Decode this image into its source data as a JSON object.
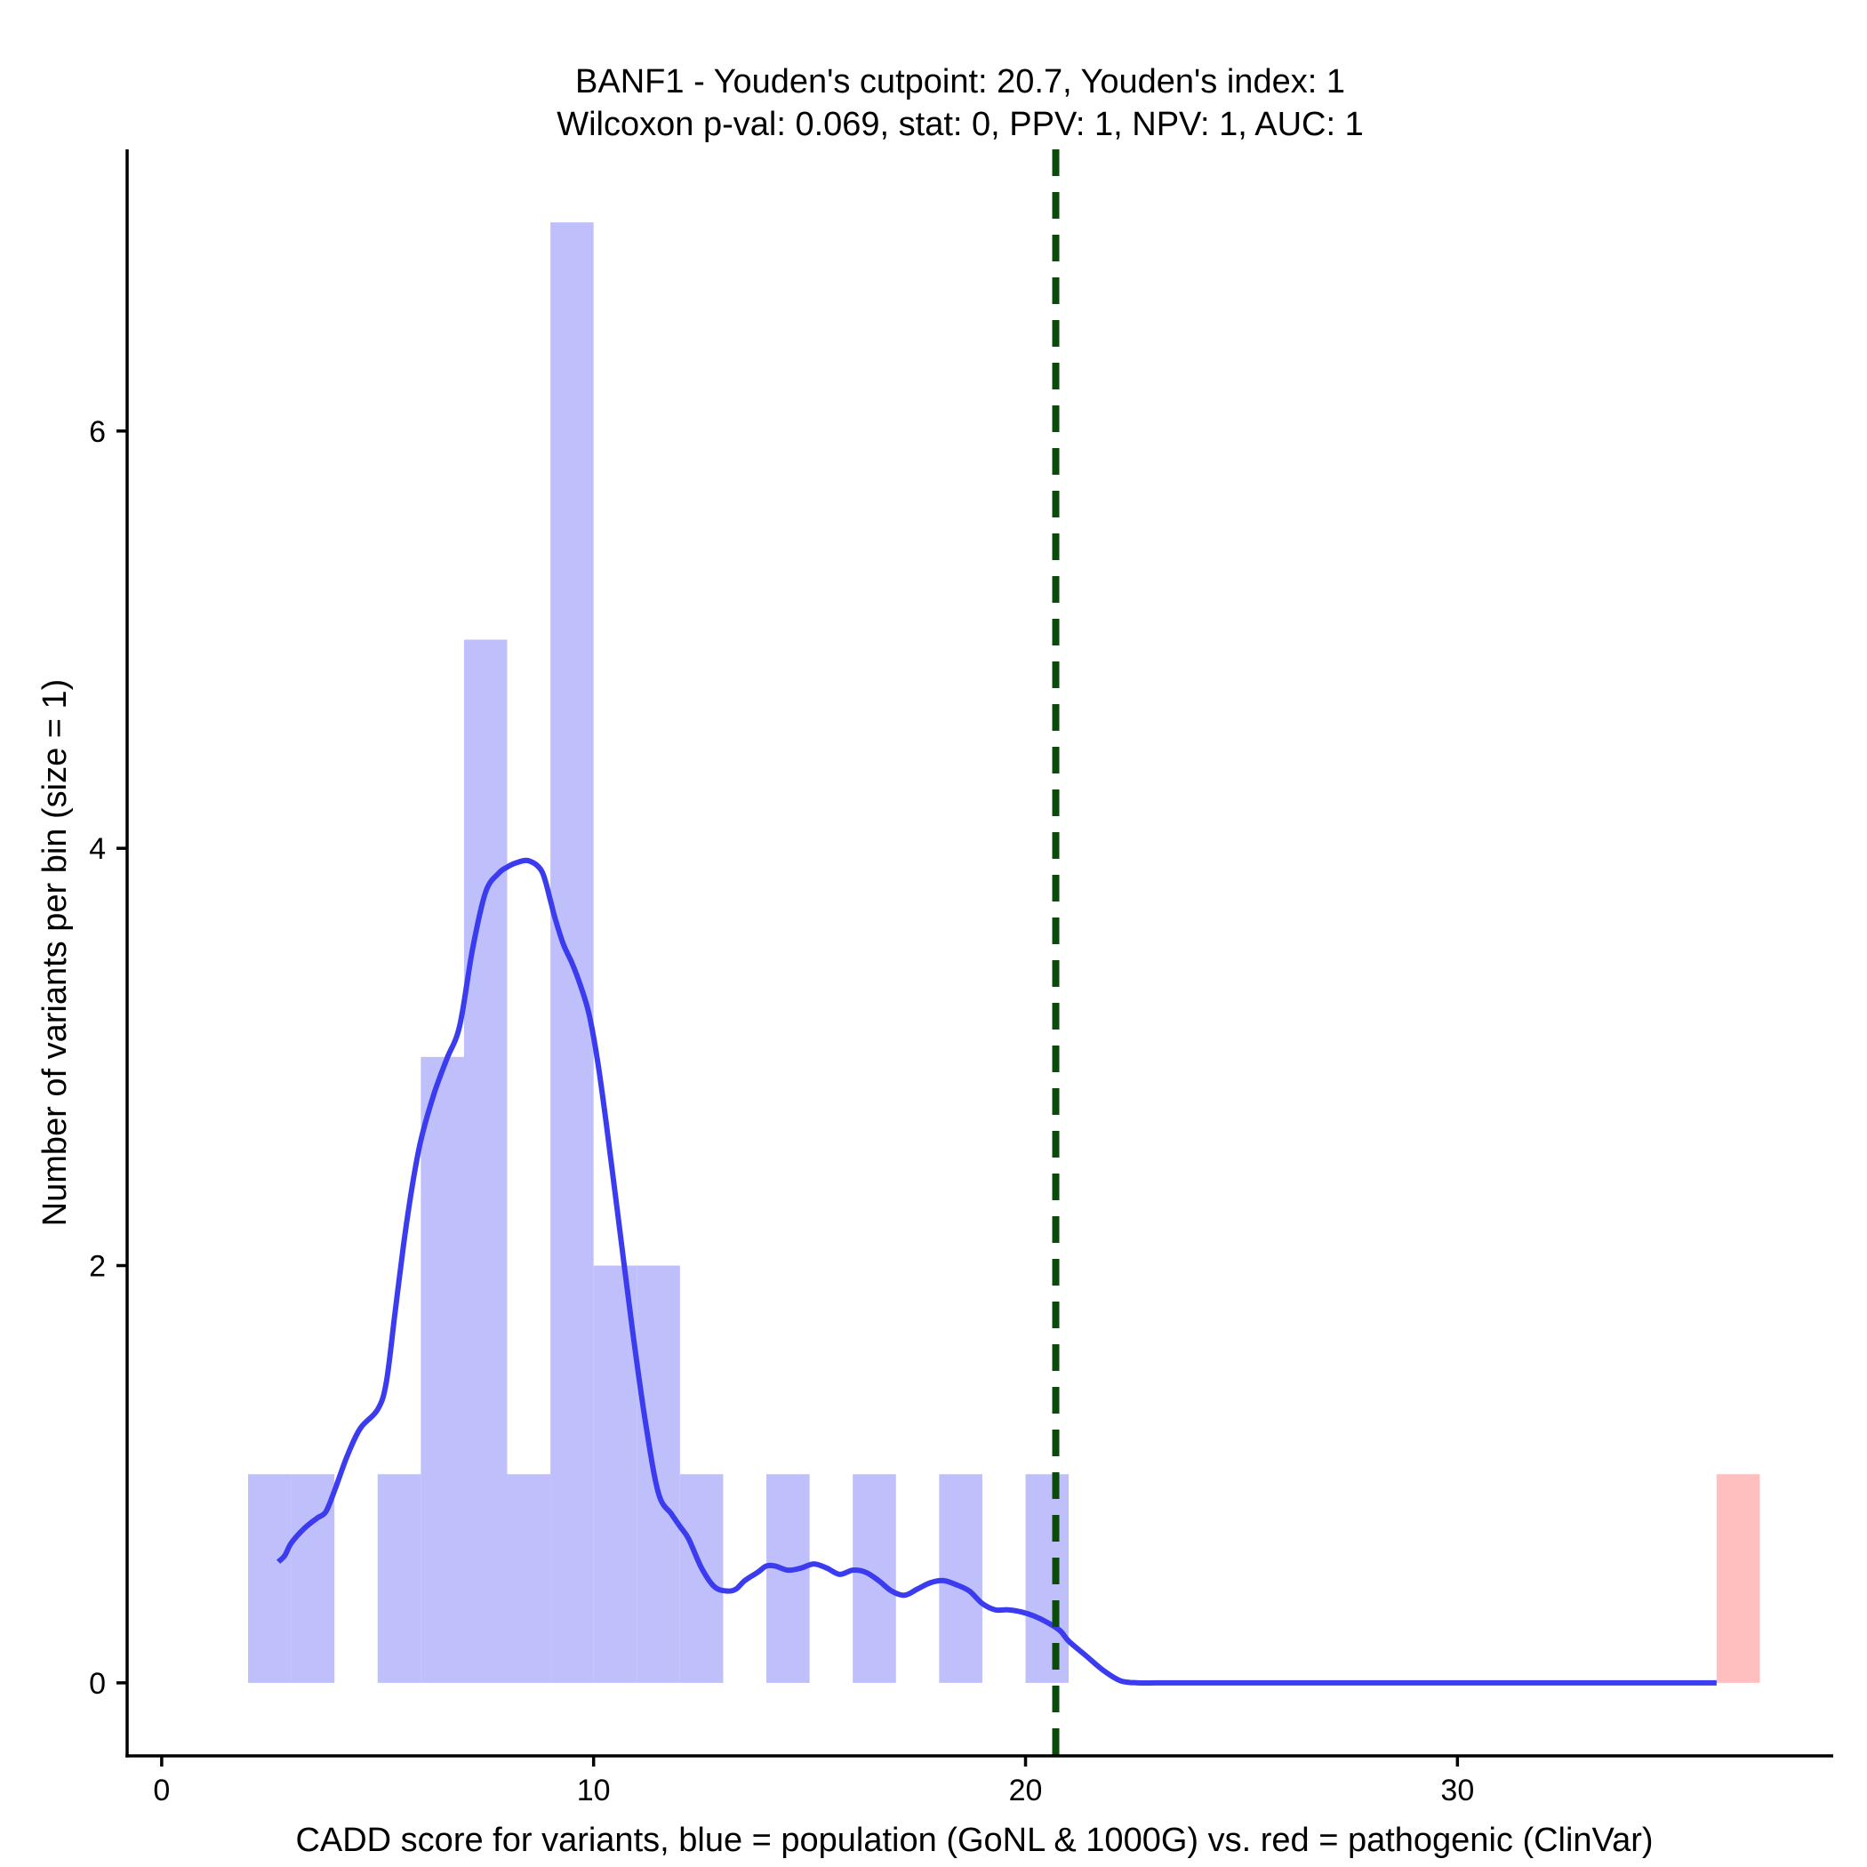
{
  "chart_data": {
    "type": "bar",
    "title_line1": "BANF1 - Youden's cutpoint: 20.7, Youden's index: 1",
    "title_line2": "Wilcoxon p-val: 0.069, stat: 0, PPV: 1, NPV: 1, AUC: 1",
    "xlabel": "CADD score for variants, blue = population (GoNL & 1000G) vs. red = pathogenic (ClinVar)",
    "ylabel": "Number of variants per bin (size = 1)",
    "xlim": [
      -0.8,
      38.7
    ],
    "ylim": [
      -0.35,
      7.35
    ],
    "x_ticks": [
      0,
      10,
      20,
      30
    ],
    "x_tick_labels": [
      "0",
      "10",
      "20",
      "30"
    ],
    "y_ticks": [
      0,
      2,
      4,
      6
    ],
    "y_tick_labels": [
      "0",
      "2",
      "4",
      "6"
    ],
    "cutpoint": 20.7,
    "colors": {
      "population": "#bfbffb",
      "pathogenic": "#ffbfbf",
      "density": "#3b3bef",
      "cutpoint": "#0a4a0a"
    },
    "series": [
      {
        "name": "population (GoNL & 1000G)",
        "color_key": "population",
        "bins": [
          {
            "x0": 2,
            "x1": 3,
            "count": 1
          },
          {
            "x0": 3,
            "x1": 4,
            "count": 1
          },
          {
            "x0": 5,
            "x1": 6,
            "count": 1
          },
          {
            "x0": 6,
            "x1": 7,
            "count": 3
          },
          {
            "x0": 7,
            "x1": 8,
            "count": 5
          },
          {
            "x0": 8,
            "x1": 9,
            "count": 1
          },
          {
            "x0": 9,
            "x1": 10,
            "count": 7
          },
          {
            "x0": 10,
            "x1": 11,
            "count": 2
          },
          {
            "x0": 11,
            "x1": 12,
            "count": 2
          },
          {
            "x0": 12,
            "x1": 13,
            "count": 1
          },
          {
            "x0": 14,
            "x1": 15,
            "count": 1
          },
          {
            "x0": 16,
            "x1": 17,
            "count": 1
          },
          {
            "x0": 18,
            "x1": 19,
            "count": 1
          },
          {
            "x0": 20,
            "x1": 21,
            "count": 1
          }
        ]
      },
      {
        "name": "pathogenic (ClinVar)",
        "color_key": "pathogenic",
        "bins": [
          {
            "x0": 36,
            "x1": 37,
            "count": 1
          }
        ]
      }
    ],
    "density": {
      "name": "population density",
      "x": [
        2.7,
        2.85,
        3.0,
        3.3,
        3.6,
        3.8,
        4.0,
        4.3,
        4.6,
        5.0,
        5.2,
        5.4,
        5.6,
        5.8,
        6.0,
        6.3,
        6.6,
        6.9,
        7.2,
        7.5,
        7.8,
        8.0,
        8.2,
        8.5,
        8.8,
        9.0,
        9.1,
        9.3,
        9.5,
        9.7,
        9.9,
        10.1,
        10.3,
        10.6,
        10.9,
        11.2,
        11.5,
        11.8,
        12.0,
        12.2,
        12.5,
        12.8,
        13.1,
        13.3,
        13.5,
        13.8,
        14.0,
        14.2,
        14.5,
        14.8,
        15.1,
        15.4,
        15.7,
        16.0,
        16.3,
        16.6,
        16.9,
        17.2,
        17.5,
        17.8,
        18.1,
        18.4,
        18.7,
        19.0,
        19.3,
        19.6,
        19.9,
        20.2,
        20.5,
        20.8,
        21.0,
        21.4,
        21.8,
        22.2,
        22.6,
        23.0,
        23.3,
        25.0,
        28.0,
        31.0,
        34.0,
        36.0
      ],
      "y": [
        0.58,
        0.61,
        0.67,
        0.74,
        0.79,
        0.82,
        0.92,
        1.09,
        1.22,
        1.31,
        1.44,
        1.77,
        2.1,
        2.38,
        2.6,
        2.82,
        2.99,
        3.15,
        3.52,
        3.79,
        3.88,
        3.91,
        3.93,
        3.94,
        3.89,
        3.75,
        3.67,
        3.54,
        3.45,
        3.34,
        3.2,
        2.97,
        2.67,
        2.18,
        1.69,
        1.25,
        0.91,
        0.81,
        0.75,
        0.69,
        0.55,
        0.46,
        0.44,
        0.45,
        0.49,
        0.53,
        0.56,
        0.56,
        0.54,
        0.55,
        0.57,
        0.55,
        0.52,
        0.54,
        0.53,
        0.49,
        0.44,
        0.42,
        0.45,
        0.48,
        0.49,
        0.47,
        0.44,
        0.38,
        0.35,
        0.35,
        0.34,
        0.32,
        0.29,
        0.25,
        0.2,
        0.13,
        0.06,
        0.01,
        0.0,
        0.0,
        0.0,
        0.0,
        0.0,
        0.0,
        0.0,
        0.0
      ]
    }
  }
}
